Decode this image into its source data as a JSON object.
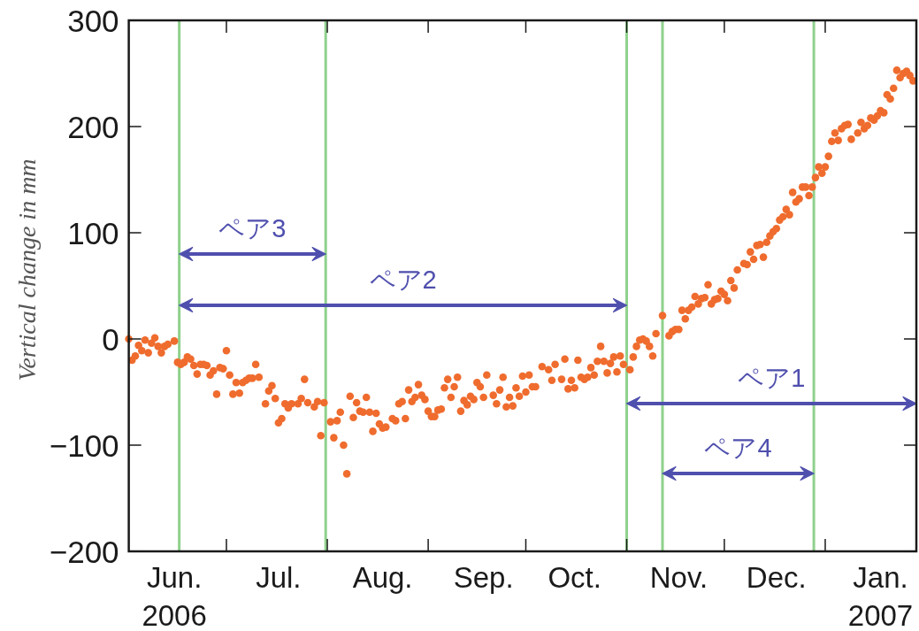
{
  "chart_data": {
    "type": "scatter",
    "ylabel": "Vertical change in mm",
    "xlim": [
      "2006-06-01",
      "2007-01-29"
    ],
    "xticks": [
      {
        "value": "2006-06-15",
        "label": "Jun.\n2006"
      },
      {
        "value": "2006-07-01",
        "label": null
      },
      {
        "value": "2006-07-17",
        "label": "Jul."
      },
      {
        "value": "2006-08-01",
        "label": null
      },
      {
        "value": "2006-08-18",
        "label": "Aug."
      },
      {
        "value": "2006-09-01",
        "label": null
      },
      {
        "value": "2006-09-18",
        "label": "Sep."
      },
      {
        "value": "2006-10-01",
        "label": null
      },
      {
        "value": "2006-10-16",
        "label": "Oct."
      },
      {
        "value": "2006-11-01",
        "label": null
      },
      {
        "value": "2006-11-17",
        "label": "Nov."
      },
      {
        "value": "2006-12-01",
        "label": null
      },
      {
        "value": "2006-12-17",
        "label": "Dec."
      },
      {
        "value": "2007-01-01",
        "label": null
      },
      {
        "value": "2007-01-18",
        "label": "Jan.\n2007"
      }
    ],
    "ylim": [
      -200,
      300
    ],
    "yticks": [
      {
        "value": -200,
        "label": "−200"
      },
      {
        "value": -100,
        "label": "−100"
      },
      0,
      100,
      200,
      300
    ],
    "ref_lines": [
      {
        "axis": "x",
        "value": "2006-06-16T12:00",
        "color": "#8fd18c"
      },
      {
        "axis": "x",
        "value": "2006-07-31T12:00",
        "color": "#8fd18c"
      },
      {
        "axis": "x",
        "value": "2006-11-01",
        "color": "#8fd18c"
      },
      {
        "axis": "x",
        "value": "2006-11-12",
        "color": "#8fd18c"
      },
      {
        "axis": "x",
        "value": "2006-12-28T12:00",
        "color": "#8fd18c"
      }
    ],
    "annotations": [
      "ペア1",
      "ペア2",
      "ペア3",
      "ペア4"
    ],
    "series": [
      {
        "color": "#ef6c2e",
        "marker": "circle",
        "x": [
          "2006-06-01",
          "2006-06-02",
          "2006-06-03",
          "2006-06-04",
          "2006-06-05",
          "2006-06-06",
          "2006-06-07",
          "2006-06-08",
          "2006-06-09",
          "2006-06-10",
          "2006-06-11",
          "2006-06-12",
          "2006-06-13",
          "2006-06-15",
          "2006-06-16",
          "2006-06-17",
          "2006-06-18",
          "2006-06-19",
          "2006-06-20",
          "2006-06-21",
          "2006-06-22",
          "2006-06-23",
          "2006-06-24",
          "2006-06-25",
          "2006-06-26",
          "2006-06-27",
          "2006-06-28",
          "2006-06-29",
          "2006-06-30",
          "2006-07-01",
          "2006-07-02",
          "2006-07-03",
          "2006-07-04",
          "2006-07-05",
          "2006-07-06",
          "2006-07-07",
          "2006-07-08",
          "2006-07-09",
          "2006-07-10",
          "2006-07-11",
          "2006-07-13",
          "2006-07-14",
          "2006-07-15",
          "2006-07-16",
          "2006-07-17",
          "2006-07-18",
          "2006-07-19",
          "2006-07-20",
          "2006-07-21",
          "2006-07-23",
          "2006-07-24",
          "2006-07-25",
          "2006-07-26",
          "2006-07-28",
          "2006-07-29",
          "2006-07-30",
          "2006-07-31",
          "2006-08-02",
          "2006-08-03",
          "2006-08-04",
          "2006-08-05",
          "2006-08-06",
          "2006-08-07",
          "2006-08-08",
          "2006-08-09",
          "2006-08-10",
          "2006-08-11",
          "2006-08-12",
          "2006-08-13",
          "2006-08-14",
          "2006-08-15",
          "2006-08-16",
          "2006-08-17",
          "2006-08-18",
          "2006-08-19",
          "2006-08-21",
          "2006-08-22",
          "2006-08-23",
          "2006-08-24",
          "2006-08-25",
          "2006-08-26",
          "2006-08-27",
          "2006-08-28",
          "2006-08-29",
          "2006-08-30",
          "2006-08-31",
          "2006-09-01",
          "2006-09-02",
          "2006-09-03",
          "2006-09-04",
          "2006-09-05",
          "2006-09-06",
          "2006-09-07",
          "2006-09-08",
          "2006-09-09",
          "2006-09-10",
          "2006-09-11",
          "2006-09-12",
          "2006-09-13",
          "2006-09-14",
          "2006-09-15",
          "2006-09-16",
          "2006-09-17",
          "2006-09-18",
          "2006-09-19",
          "2006-09-21",
          "2006-09-22",
          "2006-09-23",
          "2006-09-24",
          "2006-09-25",
          "2006-09-26",
          "2006-09-27",
          "2006-09-28",
          "2006-09-29",
          "2006-09-30",
          "2006-10-01",
          "2006-10-02",
          "2006-10-03",
          "2006-10-04",
          "2006-10-06",
          "2006-10-08",
          "2006-10-09",
          "2006-10-10",
          "2006-10-12",
          "2006-10-13",
          "2006-10-14",
          "2006-10-15",
          "2006-10-16",
          "2006-10-17",
          "2006-10-18",
          "2006-10-19",
          "2006-10-20",
          "2006-10-21",
          "2006-10-22",
          "2006-10-23",
          "2006-10-24",
          "2006-10-25",
          "2006-10-26",
          "2006-10-27",
          "2006-10-28",
          "2006-10-29",
          "2006-10-30",
          "2006-10-31",
          "2006-11-02",
          "2006-11-03",
          "2006-11-04",
          "2006-11-05",
          "2006-11-06",
          "2006-11-07",
          "2006-11-08",
          "2006-11-09",
          "2006-11-10",
          "2006-11-12",
          "2006-11-14",
          "2006-11-15",
          "2006-11-16",
          "2006-11-17",
          "2006-11-18",
          "2006-11-19",
          "2006-11-20",
          "2006-11-21",
          "2006-11-22",
          "2006-11-23",
          "2006-11-24",
          "2006-11-25",
          "2006-11-26",
          "2006-11-27",
          "2006-11-28",
          "2006-11-29",
          "2006-11-30",
          "2006-12-01",
          "2006-12-02",
          "2006-12-03",
          "2006-12-04",
          "2006-12-05",
          "2006-12-07",
          "2006-12-08",
          "2006-12-09",
          "2006-12-10",
          "2006-12-11",
          "2006-12-12",
          "2006-12-13",
          "2006-12-14",
          "2006-12-15",
          "2006-12-16",
          "2006-12-17",
          "2006-12-18",
          "2006-12-19",
          "2006-12-20",
          "2006-12-21",
          "2006-12-22",
          "2006-12-23",
          "2006-12-24",
          "2006-12-25",
          "2006-12-26",
          "2006-12-27",
          "2006-12-28",
          "2006-12-29",
          "2006-12-30",
          "2006-12-31",
          "2007-01-01",
          "2007-01-02",
          "2007-01-03",
          "2007-01-04",
          "2007-01-05",
          "2007-01-06",
          "2007-01-07",
          "2007-01-08",
          "2007-01-09",
          "2007-01-11",
          "2007-01-12",
          "2007-01-13",
          "2007-01-14",
          "2007-01-15",
          "2007-01-16",
          "2007-01-17",
          "2007-01-18",
          "2007-01-19",
          "2007-01-20",
          "2007-01-21",
          "2007-01-22",
          "2007-01-23",
          "2007-01-24",
          "2007-01-25",
          "2007-01-26",
          "2007-01-27",
          "2007-01-28"
        ],
        "values": [
          0,
          -20,
          -16,
          -6,
          -11,
          -1,
          -13,
          -4,
          1,
          -7,
          -13,
          -7,
          -5,
          -2,
          -22,
          -24,
          -22,
          -17,
          -19,
          -25,
          -33,
          -24,
          -24,
          -25,
          -34,
          -30,
          -52,
          -27,
          -28,
          -11,
          -34,
          -52,
          -41,
          -51,
          -41,
          -39,
          -37,
          -37,
          -24,
          -36,
          -61,
          -49,
          -44,
          -56,
          -79,
          -75,
          -61,
          -65,
          -61,
          -61,
          -56,
          -38,
          -60,
          -64,
          -59,
          -91,
          -60,
          -78,
          -93,
          -77,
          -69,
          -100,
          -127,
          -54,
          -74,
          -60,
          -68,
          -69,
          -55,
          -69,
          -87,
          -70,
          -80,
          -84,
          -83,
          -75,
          -77,
          -61,
          -59,
          -75,
          -48,
          -59,
          -55,
          -43,
          -53,
          -57,
          -68,
          -73,
          -73,
          -67,
          -66,
          -46,
          -38,
          -55,
          -45,
          -36,
          -68,
          -58,
          -62,
          -54,
          -57,
          -41,
          -45,
          -55,
          -34,
          -53,
          -61,
          -48,
          -36,
          -64,
          -55,
          -63,
          -46,
          -54,
          -35,
          -50,
          -34,
          -45,
          -45,
          -26,
          -29,
          -39,
          -24,
          -38,
          -19,
          -47,
          -39,
          -46,
          -20,
          -36,
          -38,
          -36,
          -27,
          -34,
          -21,
          -7,
          -21,
          -32,
          -23,
          -17,
          -31,
          -16,
          -24,
          -29,
          -17,
          -7,
          -1,
          0,
          -2,
          -7,
          -16,
          5,
          22,
          3,
          7,
          9,
          9,
          27,
          19,
          27,
          30,
          40,
          33,
          38,
          39,
          51,
          33,
          37,
          38,
          45,
          42,
          36,
          55,
          48,
          65,
          71,
          70,
          82,
          75,
          88,
          89,
          77,
          91,
          97,
          101,
          104,
          112,
          115,
          122,
          117,
          138,
          129,
          132,
          143,
          143,
          135,
          143,
          152,
          162,
          156,
          162,
          172,
          186,
          194,
          187,
          198,
          201,
          202,
          188,
          194,
          204,
          198,
          201,
          208,
          206,
          210,
          215,
          213,
          230,
          226,
          236,
          253,
          246,
          250,
          252,
          248,
          243
        ]
      }
    ]
  }
}
